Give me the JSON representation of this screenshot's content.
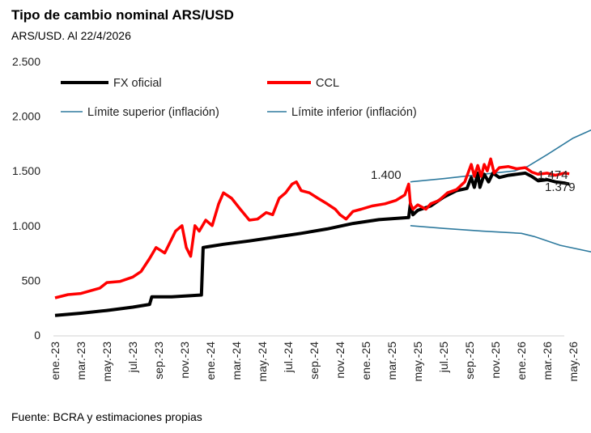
{
  "title": "Tipo de cambio nominal ARS/USD",
  "subtitle": "ARS/USD. Al 22/4/2026",
  "source": "Fuente: BCRA y estimaciones propias",
  "chart_data": {
    "type": "line",
    "ylim": [
      0,
      2500
    ],
    "yticks": [
      0,
      500,
      1000,
      1500,
      2000,
      2500
    ],
    "ytick_labels": [
      "0",
      "500",
      "1.000",
      "1.500",
      "2.000",
      "2.500"
    ],
    "xlim": [
      "2023-01-01",
      "2026-07-31"
    ],
    "xtick_labels": [
      "ene.-23",
      "mar.-23",
      "may.-23",
      "jul.-23",
      "sep.-23",
      "nov.-23",
      "ene.-24",
      "mar.-24",
      "may.-24",
      "jul.-24",
      "sep.-24",
      "nov.-24",
      "ene.-25",
      "mar.-25",
      "may.-25",
      "jul.-25",
      "sep.-25",
      "nov.-25",
      "ene.-26",
      "mar.-26",
      "may.-26"
    ],
    "legend": "top",
    "grid": false,
    "series": [
      {
        "name": "FX oficial",
        "color": "#000000",
        "points": [
          [
            "2023-01-01",
            180
          ],
          [
            "2023-03-01",
            200
          ],
          [
            "2023-05-01",
            225
          ],
          [
            "2023-07-01",
            255
          ],
          [
            "2023-08-10",
            280
          ],
          [
            "2023-08-15",
            350
          ],
          [
            "2023-10-01",
            350
          ],
          [
            "2023-12-10",
            366
          ],
          [
            "2023-12-14",
            800
          ],
          [
            "2024-02-01",
            830
          ],
          [
            "2024-04-01",
            860
          ],
          [
            "2024-06-01",
            895
          ],
          [
            "2024-08-01",
            930
          ],
          [
            "2024-10-01",
            970
          ],
          [
            "2024-12-01",
            1020
          ],
          [
            "2025-02-01",
            1055
          ],
          [
            "2025-04-10",
            1075
          ],
          [
            "2025-04-14",
            1200
          ],
          [
            "2025-04-20",
            1100
          ],
          [
            "2025-05-01",
            1140
          ],
          [
            "2025-06-01",
            1180
          ],
          [
            "2025-07-01",
            1260
          ],
          [
            "2025-08-01",
            1320
          ],
          [
            "2025-08-25",
            1340
          ],
          [
            "2025-09-05",
            1440
          ],
          [
            "2025-09-12",
            1350
          ],
          [
            "2025-09-20",
            1480
          ],
          [
            "2025-09-25",
            1350
          ],
          [
            "2025-10-05",
            1470
          ],
          [
            "2025-10-15",
            1400
          ],
          [
            "2025-10-25",
            1480
          ],
          [
            "2025-11-10",
            1440
          ],
          [
            "2025-12-01",
            1460
          ],
          [
            "2025-12-20",
            1470
          ],
          [
            "2026-01-10",
            1480
          ],
          [
            "2026-01-25",
            1450
          ],
          [
            "2026-02-10",
            1410
          ],
          [
            "2026-03-01",
            1420
          ],
          [
            "2026-03-20",
            1400
          ],
          [
            "2026-04-10",
            1390
          ],
          [
            "2026-04-22",
            1379
          ]
        ]
      },
      {
        "name": "CCL",
        "color": "#ff0000",
        "points": [
          [
            "2023-01-01",
            340
          ],
          [
            "2023-02-01",
            370
          ],
          [
            "2023-03-01",
            380
          ],
          [
            "2023-04-15",
            430
          ],
          [
            "2023-05-01",
            480
          ],
          [
            "2023-06-01",
            490
          ],
          [
            "2023-07-01",
            530
          ],
          [
            "2023-07-20",
            580
          ],
          [
            "2023-08-10",
            700
          ],
          [
            "2023-08-25",
            800
          ],
          [
            "2023-09-15",
            750
          ],
          [
            "2023-10-10",
            950
          ],
          [
            "2023-10-25",
            1000
          ],
          [
            "2023-11-05",
            800
          ],
          [
            "2023-11-15",
            720
          ],
          [
            "2023-11-25",
            1000
          ],
          [
            "2023-12-05",
            950
          ],
          [
            "2023-12-20",
            1050
          ],
          [
            "2024-01-05",
            1000
          ],
          [
            "2024-01-20",
            1200
          ],
          [
            "2024-02-01",
            1300
          ],
          [
            "2024-02-20",
            1250
          ],
          [
            "2024-03-10",
            1150
          ],
          [
            "2024-04-01",
            1050
          ],
          [
            "2024-04-20",
            1060
          ],
          [
            "2024-05-10",
            1120
          ],
          [
            "2024-05-25",
            1100
          ],
          [
            "2024-06-10",
            1250
          ],
          [
            "2024-06-25",
            1300
          ],
          [
            "2024-07-10",
            1380
          ],
          [
            "2024-07-20",
            1400
          ],
          [
            "2024-08-01",
            1320
          ],
          [
            "2024-08-20",
            1300
          ],
          [
            "2024-09-10",
            1250
          ],
          [
            "2024-10-01",
            1200
          ],
          [
            "2024-10-20",
            1150
          ],
          [
            "2024-11-01",
            1100
          ],
          [
            "2024-11-15",
            1060
          ],
          [
            "2024-12-01",
            1130
          ],
          [
            "2024-12-20",
            1150
          ],
          [
            "2025-01-15",
            1180
          ],
          [
            "2025-02-15",
            1200
          ],
          [
            "2025-03-10",
            1230
          ],
          [
            "2025-04-01",
            1280
          ],
          [
            "2025-04-10",
            1380
          ],
          [
            "2025-04-14",
            1200
          ],
          [
            "2025-04-20",
            1150
          ],
          [
            "2025-05-01",
            1190
          ],
          [
            "2025-05-20",
            1150
          ],
          [
            "2025-06-01",
            1200
          ],
          [
            "2025-06-20",
            1230
          ],
          [
            "2025-07-10",
            1300
          ],
          [
            "2025-08-01",
            1330
          ],
          [
            "2025-08-20",
            1400
          ],
          [
            "2025-09-05",
            1560
          ],
          [
            "2025-09-12",
            1450
          ],
          [
            "2025-09-20",
            1550
          ],
          [
            "2025-09-28",
            1450
          ],
          [
            "2025-10-05",
            1560
          ],
          [
            "2025-10-12",
            1500
          ],
          [
            "2025-10-20",
            1610
          ],
          [
            "2025-10-28",
            1480
          ],
          [
            "2025-11-10",
            1530
          ],
          [
            "2025-12-01",
            1540
          ],
          [
            "2025-12-20",
            1520
          ],
          [
            "2026-01-10",
            1530
          ],
          [
            "2026-01-25",
            1490
          ],
          [
            "2026-02-10",
            1470
          ],
          [
            "2026-03-01",
            1480
          ],
          [
            "2026-03-20",
            1460
          ],
          [
            "2026-04-10",
            1480
          ],
          [
            "2026-04-22",
            1474
          ]
        ]
      },
      {
        "name": "Límite superior (inflación)",
        "color": "#2e7a9e",
        "points": [
          [
            "2025-04-14",
            1400
          ],
          [
            "2025-07-01",
            1430
          ],
          [
            "2025-10-01",
            1470
          ],
          [
            "2025-12-15",
            1500
          ],
          [
            "2026-01-15",
            1540
          ],
          [
            "2026-03-01",
            1650
          ],
          [
            "2026-05-01",
            1800
          ],
          [
            "2026-07-31",
            1960
          ]
        ]
      },
      {
        "name": "Límite inferior (inflación)",
        "color": "#2e7a9e",
        "points": [
          [
            "2025-04-14",
            1000
          ],
          [
            "2025-07-01",
            975
          ],
          [
            "2025-10-01",
            950
          ],
          [
            "2025-12-31",
            930
          ],
          [
            "2026-02-01",
            900
          ],
          [
            "2026-04-01",
            820
          ],
          [
            "2026-07-31",
            720
          ]
        ]
      }
    ],
    "annotations": [
      {
        "text": "1.400",
        "series": "Límite superior (inflación)",
        "date": "2025-04-14"
      },
      {
        "text": "1.474",
        "series": "CCL",
        "date": "2026-04-22"
      },
      {
        "text": "1.379",
        "series": "FX oficial",
        "date": "2026-04-22"
      }
    ]
  }
}
